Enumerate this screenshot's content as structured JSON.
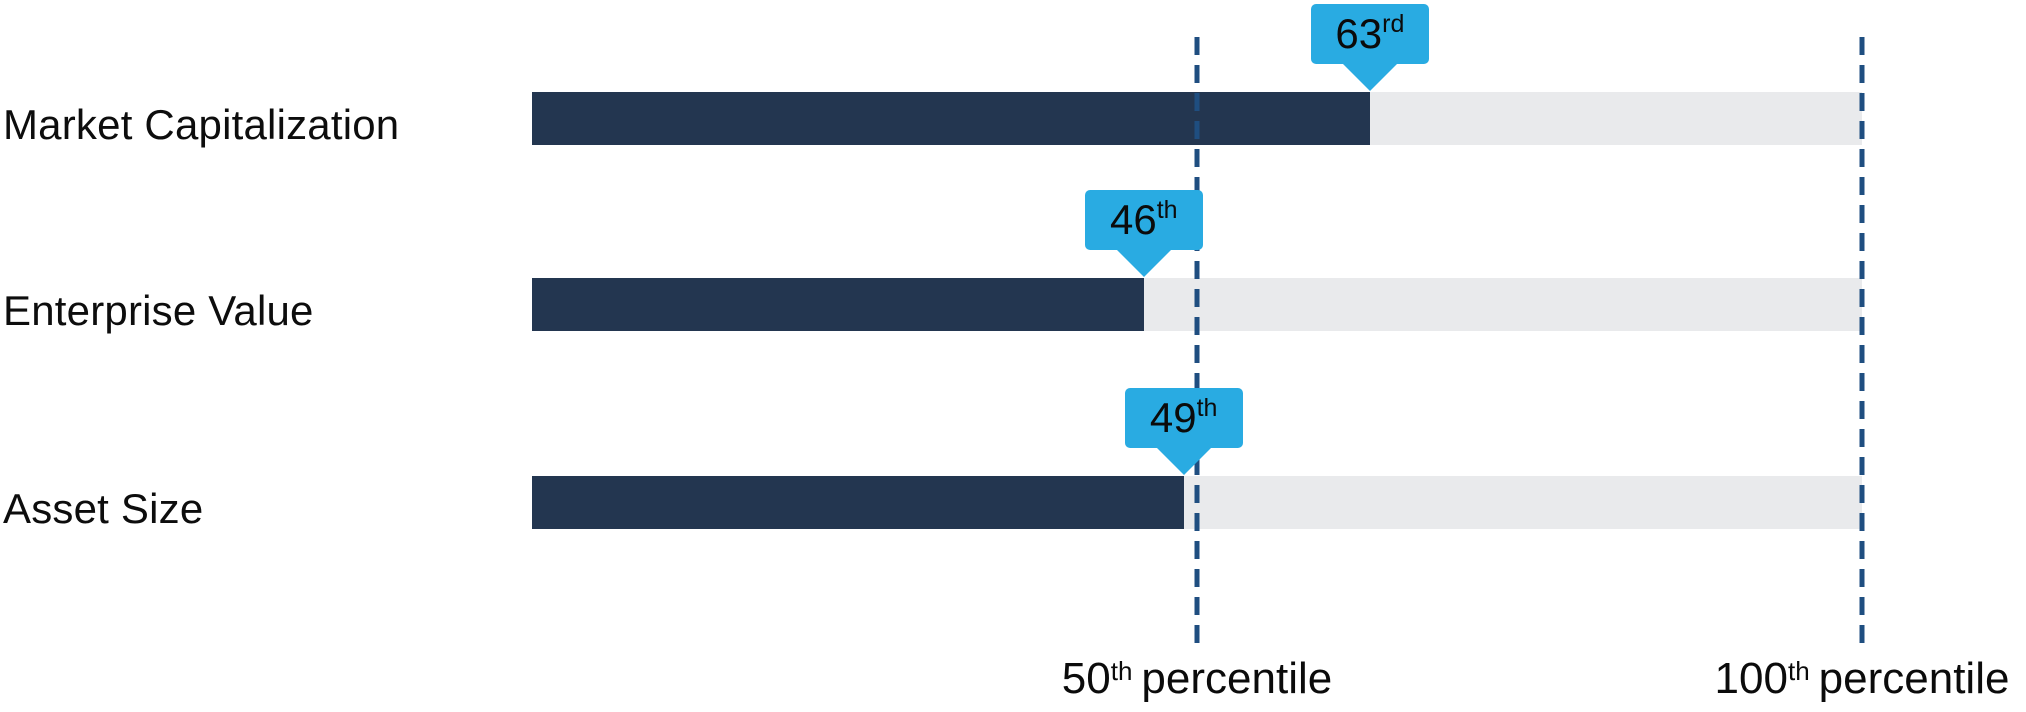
{
  "chart_data": {
    "type": "bar",
    "orientation": "horizontal",
    "categories": [
      "Market Capitalization",
      "Enterprise Value",
      "Asset Size"
    ],
    "values": [
      63,
      46,
      49
    ],
    "value_labels": [
      "63rd",
      "46th",
      "49th"
    ],
    "xlim": [
      0,
      100
    ],
    "gridlines": {
      "style": "vertical-dashed",
      "positions": [
        50,
        100
      ]
    },
    "legend": "none"
  },
  "rows": [
    {
      "label": "Market Capitalization",
      "marker_number": "63",
      "marker_suffix": "rd"
    },
    {
      "label": "Enterprise Value",
      "marker_number": "46",
      "marker_suffix": "th"
    },
    {
      "label": "Asset Size",
      "marker_number": "49",
      "marker_suffix": "th"
    }
  ],
  "axis": {
    "ticks": [
      {
        "value": 50,
        "number": "50",
        "suffix": "th",
        "word": "percentile"
      },
      {
        "value": 100,
        "number": "100",
        "suffix": "th",
        "word": "percentile"
      }
    ]
  },
  "colors": {
    "bar_fill": "#233650",
    "bar_track": "#E9EAEC",
    "callout_bg": "#29ABE2",
    "gridline": "#1F4E80",
    "text": "#0D0D0D"
  }
}
